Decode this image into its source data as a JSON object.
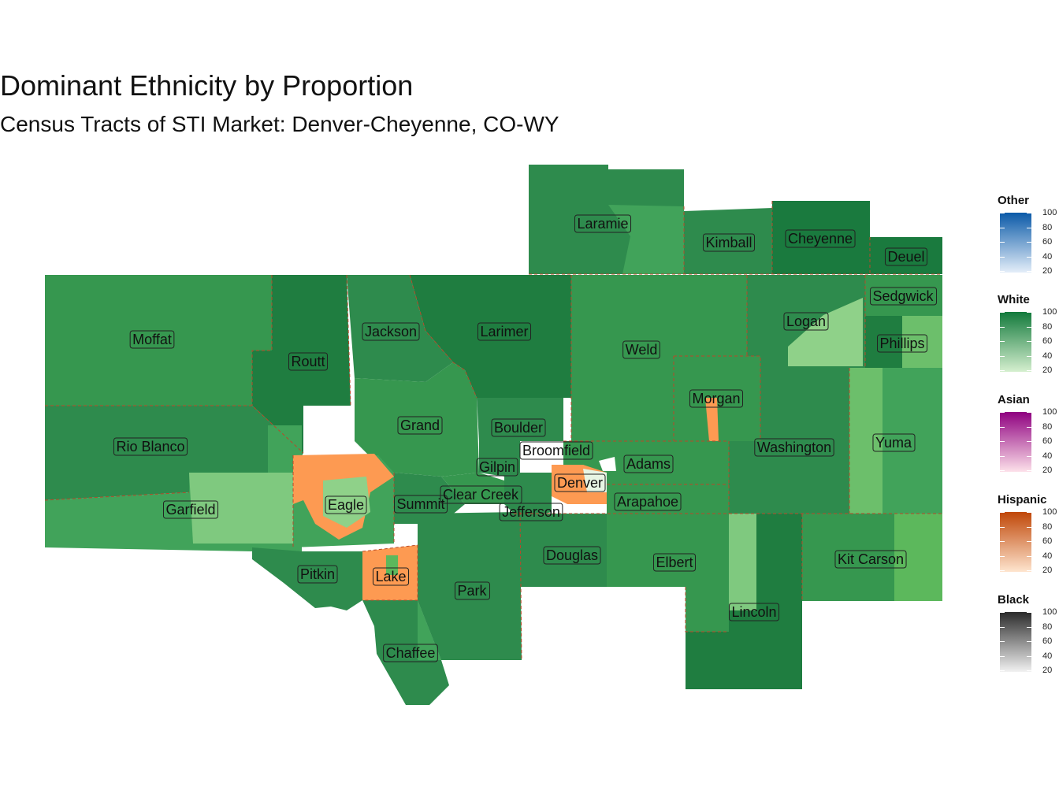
{
  "title": "Dominant Ethnicity by Proportion",
  "subtitle": "Census Tracts of STI Market: Denver-Cheyenne, CO-WY",
  "counties": [
    {
      "name": "Laramie"
    },
    {
      "name": "Kimball"
    },
    {
      "name": "Cheyenne"
    },
    {
      "name": "Deuel"
    },
    {
      "name": "Sedgwick"
    },
    {
      "name": "Logan"
    },
    {
      "name": "Phillips"
    },
    {
      "name": "Moffat"
    },
    {
      "name": "Jackson"
    },
    {
      "name": "Larimer"
    },
    {
      "name": "Routt"
    },
    {
      "name": "Weld"
    },
    {
      "name": "Morgan"
    },
    {
      "name": "Rio Blanco"
    },
    {
      "name": "Grand"
    },
    {
      "name": "Boulder"
    },
    {
      "name": "Broomfield"
    },
    {
      "name": "Washington"
    },
    {
      "name": "Yuma"
    },
    {
      "name": "Adams"
    },
    {
      "name": "Gilpin"
    },
    {
      "name": "Denver"
    },
    {
      "name": "Garfield"
    },
    {
      "name": "Eagle"
    },
    {
      "name": "Summit"
    },
    {
      "name": "Clear Creek"
    },
    {
      "name": "Arapahoe"
    },
    {
      "name": "Jefferson"
    },
    {
      "name": "Douglas"
    },
    {
      "name": "Elbert"
    },
    {
      "name": "Kit Carson"
    },
    {
      "name": "Pitkin"
    },
    {
      "name": "Lake"
    },
    {
      "name": "Park"
    },
    {
      "name": "Lincoln"
    },
    {
      "name": "Chaffee"
    }
  ],
  "legend": [
    {
      "title": "Other",
      "low": "#e4eef9",
      "high": "#0b5aa8",
      "ticks": [
        "100",
        "80",
        "60",
        "40",
        "20"
      ]
    },
    {
      "title": "White",
      "low": "#d5efcf",
      "high": "#137a3c",
      "ticks": [
        "100",
        "80",
        "60",
        "40",
        "20"
      ]
    },
    {
      "title": "Asian",
      "low": "#fde1ea",
      "high": "#8f0180",
      "ticks": [
        "100",
        "80",
        "60",
        "40",
        "20"
      ]
    },
    {
      "title": "Hispanic",
      "low": "#fee5cf",
      "high": "#c04708",
      "ticks": [
        "100",
        "80",
        "60",
        "40",
        "20"
      ]
    },
    {
      "title": "Black",
      "low": "#f2f2f2",
      "high": "#2b2b2b",
      "ticks": [
        "100",
        "80",
        "60",
        "40",
        "20"
      ]
    }
  ]
}
